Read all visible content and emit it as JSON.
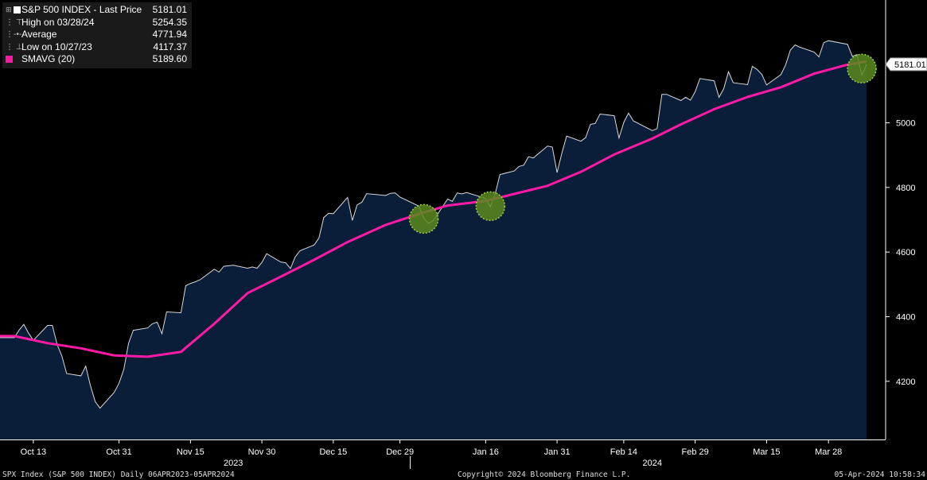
{
  "legend": {
    "rows": [
      {
        "label": "S&P 500 INDEX - Last Price",
        "value": "5181.01",
        "icon": "white-square"
      },
      {
        "label": "High on 03/28/24",
        "value": "5254.35",
        "icon": "high-marker"
      },
      {
        "label": "Average",
        "value": "4771.94",
        "icon": "average-line"
      },
      {
        "label": "Low on 10/27/23",
        "value": "4117.37",
        "icon": "low-marker"
      },
      {
        "label": "SMAVG (20)",
        "value": "5189.60",
        "icon": "magenta-square"
      }
    ]
  },
  "last_price_tag": "5181.01",
  "footer": {
    "left": "SPX Index (S&P 500 INDEX)  Daily 06APR2023-05APR2024",
    "center": "Copyright© 2024 Bloomberg Finance L.P.",
    "right": "05-Apr-2024 10:58:34"
  },
  "colors": {
    "price": "#d9d9d9",
    "area": "#0a1e3a",
    "sma": "#ff1aa6",
    "highlight": "#5a8a1e"
  },
  "chart_data": {
    "type": "area",
    "title": "S&P 500 INDEX - Last Price",
    "x_tick_labels": [
      "Oct 13",
      "Oct 31",
      "Nov 15",
      "Nov 30",
      "Dec 15",
      "Dec 29",
      "Jan 16",
      "Jan 31",
      "Feb 14",
      "Feb 29",
      "Mar 15",
      "Mar 28"
    ],
    "year_labels": [
      "2023",
      "2024"
    ],
    "y_ticks": [
      4200,
      4400,
      4600,
      4800,
      5000
    ],
    "ylim": [
      4020,
      5380
    ],
    "y_axis_side": "right",
    "grid": false,
    "highlights": [
      "2024-01-03",
      "2024-01-17",
      "2024-04-04"
    ],
    "series": [
      {
        "name": "S&P 500 INDEX - Last Price",
        "style": "filled-area",
        "x": [
          "2023-10-09",
          "2023-10-10",
          "2023-10-11",
          "2023-10-12",
          "2023-10-13",
          "2023-10-16",
          "2023-10-17",
          "2023-10-18",
          "2023-10-19",
          "2023-10-20",
          "2023-10-23",
          "2023-10-24",
          "2023-10-25",
          "2023-10-26",
          "2023-10-27",
          "2023-10-30",
          "2023-10-31",
          "2023-11-01",
          "2023-11-02",
          "2023-11-03",
          "2023-11-06",
          "2023-11-07",
          "2023-11-08",
          "2023-11-09",
          "2023-11-10",
          "2023-11-13",
          "2023-11-14",
          "2023-11-15",
          "2023-11-16",
          "2023-11-17",
          "2023-11-20",
          "2023-11-21",
          "2023-11-22",
          "2023-11-24",
          "2023-11-27",
          "2023-11-28",
          "2023-11-29",
          "2023-11-30",
          "2023-12-01",
          "2023-12-04",
          "2023-12-05",
          "2023-12-06",
          "2023-12-07",
          "2023-12-08",
          "2023-12-11",
          "2023-12-12",
          "2023-12-13",
          "2023-12-14",
          "2023-12-15",
          "2023-12-18",
          "2023-12-19",
          "2023-12-20",
          "2023-12-21",
          "2023-12-22",
          "2023-12-26",
          "2023-12-27",
          "2023-12-28",
          "2023-12-29",
          "2024-01-02",
          "2024-01-03",
          "2024-01-04",
          "2024-01-05",
          "2024-01-08",
          "2024-01-09",
          "2024-01-10",
          "2024-01-11",
          "2024-01-12",
          "2024-01-16",
          "2024-01-17",
          "2024-01-18",
          "2024-01-19",
          "2024-01-22",
          "2024-01-23",
          "2024-01-24",
          "2024-01-25",
          "2024-01-26",
          "2024-01-29",
          "2024-01-30",
          "2024-01-31",
          "2024-02-01",
          "2024-02-02",
          "2024-02-05",
          "2024-02-06",
          "2024-02-07",
          "2024-02-08",
          "2024-02-09",
          "2024-02-12",
          "2024-02-13",
          "2024-02-14",
          "2024-02-15",
          "2024-02-16",
          "2024-02-20",
          "2024-02-21",
          "2024-02-22",
          "2024-02-23",
          "2024-02-26",
          "2024-02-27",
          "2024-02-28",
          "2024-02-29",
          "2024-03-01",
          "2024-03-04",
          "2024-03-05",
          "2024-03-06",
          "2024-03-07",
          "2024-03-08",
          "2024-03-11",
          "2024-03-12",
          "2024-03-13",
          "2024-03-14",
          "2024-03-15",
          "2024-03-18",
          "2024-03-19",
          "2024-03-20",
          "2024-03-21",
          "2024-03-22",
          "2024-03-25",
          "2024-03-26",
          "2024-03-27",
          "2024-03-28",
          "2024-04-01",
          "2024-04-02",
          "2024-04-03",
          "2024-04-04",
          "2024-04-05"
        ],
        "values": [
          4335,
          4358,
          4376,
          4349,
          4327,
          4373,
          4373,
          4314,
          4278,
          4224,
          4217,
          4247,
          4186,
          4137,
          4117,
          4166,
          4194,
          4237,
          4318,
          4358,
          4365,
          4378,
          4383,
          4347,
          4415,
          4412,
          4496,
          4503,
          4508,
          4514,
          4547,
          4538,
          4556,
          4559,
          4550,
          4554,
          4550,
          4568,
          4595,
          4569,
          4567,
          4549,
          4585,
          4604,
          4622,
          4644,
          4707,
          4720,
          4719,
          4769,
          4698,
          4746,
          4754,
          4781,
          4775,
          4782,
          4783,
          4770,
          4742,
          4705,
          4689,
          4697,
          4764,
          4757,
          4783,
          4780,
          4784,
          4766,
          4740,
          4780,
          4840,
          4851,
          4865,
          4869,
          4895,
          4891,
          4928,
          4925,
          4846,
          4906,
          4959,
          4943,
          4954,
          4995,
          4998,
          5027,
          5022,
          4953,
          5001,
          5030,
          5006,
          4976,
          4982,
          5088,
          5088,
          5069,
          5079,
          5070,
          5096,
          5137,
          5130,
          5079,
          5105,
          5158,
          5124,
          5118,
          5175,
          5165,
          5150,
          5117,
          5149,
          5179,
          5225,
          5241,
          5234,
          5219,
          5204,
          5248,
          5254,
          5243,
          5206,
          5211,
          5147,
          5181
        ]
      },
      {
        "name": "SMAVG (20)",
        "style": "line",
        "x": [
          "2023-10-09",
          "2023-10-16",
          "2023-10-23",
          "2023-10-30",
          "2023-11-06",
          "2023-11-13",
          "2023-11-20",
          "2023-11-27",
          "2023-12-04",
          "2023-12-11",
          "2023-12-18",
          "2023-12-26",
          "2024-01-02",
          "2024-01-08",
          "2024-01-16",
          "2024-01-22",
          "2024-01-29",
          "2024-02-05",
          "2024-02-12",
          "2024-02-20",
          "2024-02-26",
          "2024-03-04",
          "2024-03-11",
          "2024-03-18",
          "2024-03-25",
          "2024-04-01",
          "2024-04-05"
        ],
        "values": [
          4340,
          4318,
          4302,
          4280,
          4276,
          4291,
          4378,
          4473,
          4524,
          4576,
          4631,
          4684,
          4718,
          4744,
          4758,
          4780,
          4805,
          4848,
          4902,
          4951,
          4995,
          5042,
          5080,
          5110,
          5152,
          5180,
          5190
        ]
      }
    ]
  }
}
